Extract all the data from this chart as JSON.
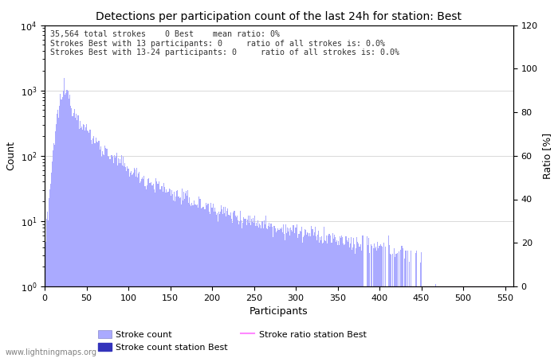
{
  "title": "Detections per participation count of the last 24h for station: Best",
  "xlabel": "Participants",
  "ylabel_left": "Count",
  "ylabel_right": "Ratio [%]",
  "annotation_lines": [
    "35,564 total strokes    0 Best    mean ratio: 0%",
    "Strokes Best with 13 participants: 0     ratio of all strokes is: 0.0%",
    "Strokes Best with 13-24 participants: 0     ratio of all strokes is: 0.0%"
  ],
  "bar_color": "#aaaaff",
  "station_bar_color": "#3333bb",
  "ratio_line_color": "#ff88ff",
  "watermark": "www.lightningmaps.org",
  "xlim": [
    0,
    560
  ],
  "ylim_log": [
    1,
    10000
  ],
  "ylim_right": [
    0,
    120
  ],
  "right_ticks": [
    0,
    20,
    40,
    60,
    80,
    100,
    120
  ],
  "x_ticks": [
    0,
    50,
    100,
    150,
    200,
    250,
    300,
    350,
    400,
    450,
    500,
    550
  ],
  "annotation_fontsize": 7.2,
  "title_fontsize": 10,
  "figsize": [
    7.0,
    4.5
  ],
  "dpi": 100
}
